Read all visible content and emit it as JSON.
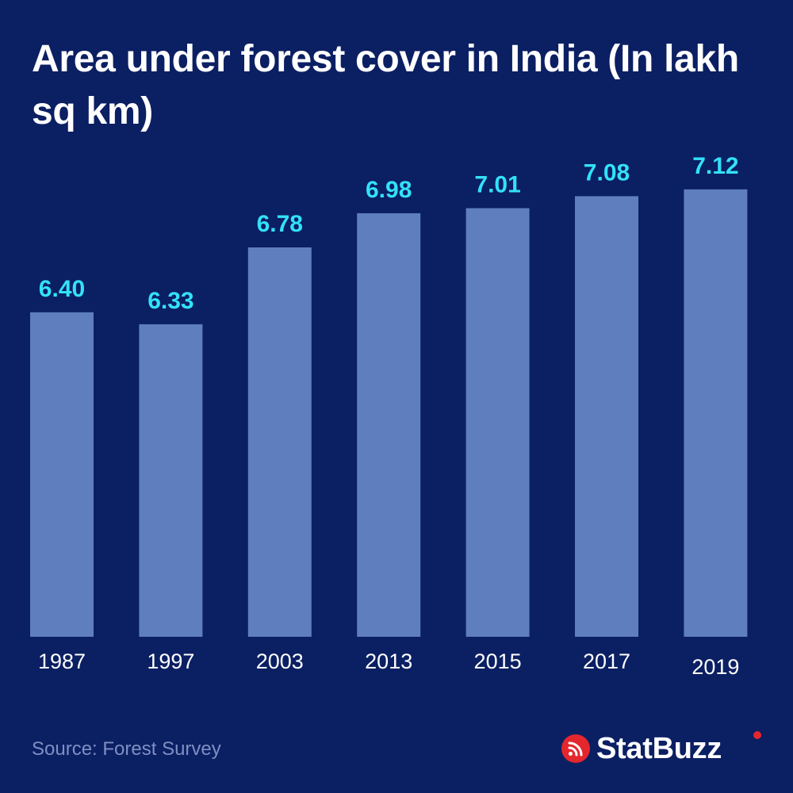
{
  "title": "Area under forest cover in India (In lakh sq km)",
  "source": "Source: Forest Survey",
  "brand": {
    "name": "StatBuzz",
    "icon": "rss-icon"
  },
  "colors": {
    "background": "#0b1f63",
    "bar": "#5f7ebe",
    "value_label": "#33e1f8",
    "axis_text": "#ffffff",
    "source_text": "#7f8fc2",
    "brand_red": "#e4272d"
  },
  "chart_data": {
    "type": "bar",
    "title": "Area under forest cover in India (In lakh sq km)",
    "categories": [
      "1987",
      "1997",
      "2003",
      "2013",
      "2015",
      "2017",
      "2019"
    ],
    "values": [
      6.4,
      6.33,
      6.78,
      6.98,
      7.01,
      7.08,
      7.12
    ],
    "value_labels": [
      "6.40",
      "6.33",
      "6.78",
      "6.98",
      "7.01",
      "7.08",
      "7.12"
    ],
    "xlabel": "",
    "ylabel": "",
    "ylim": [
      4.5,
      7.3
    ],
    "grid": false,
    "legend": "none"
  }
}
